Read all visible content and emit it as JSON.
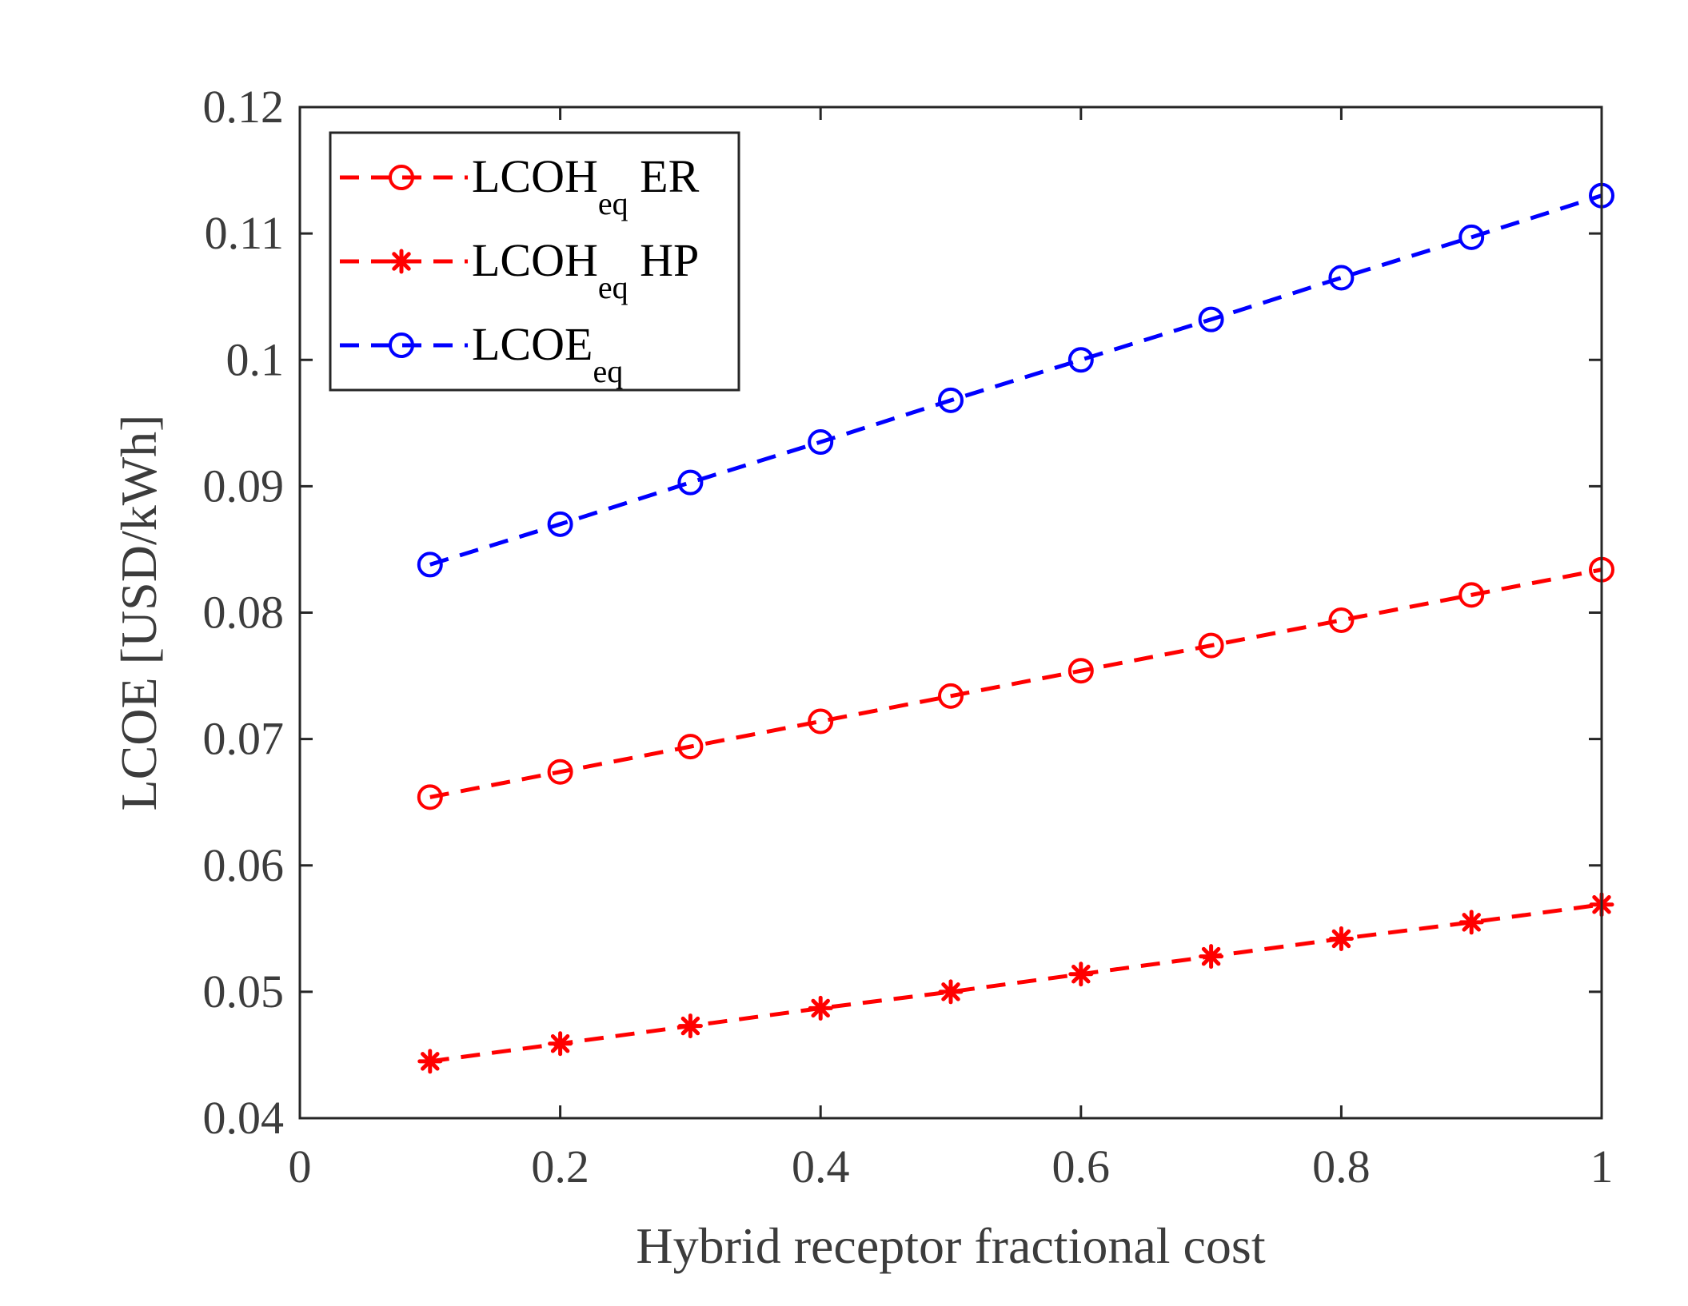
{
  "chart_data": {
    "type": "line",
    "title": "",
    "xlabel": "Hybrid receptor fractional cost",
    "ylabel": "LCOE [USD/kWh]",
    "xlim": [
      0,
      1
    ],
    "ylim": [
      0.04,
      0.12
    ],
    "grid": false,
    "legend_position": "top-left",
    "x": [
      0.1,
      0.2,
      0.3,
      0.4,
      0.5,
      0.6,
      0.7,
      0.8,
      0.9,
      1.0
    ],
    "xticks": [
      "0",
      "0.2",
      "0.4",
      "0.6",
      "0.8",
      "1"
    ],
    "yticks": [
      "0.04",
      "0.05",
      "0.06",
      "0.07",
      "0.08",
      "0.09",
      "0.1",
      "0.11",
      "0.12"
    ],
    "series": [
      {
        "name": "LCOH",
        "name_sub": "eq",
        "name_suffix": " ER",
        "color": "#ff0000",
        "marker": "circle",
        "values": [
          0.0654,
          0.0674,
          0.0694,
          0.0714,
          0.0734,
          0.0754,
          0.0774,
          0.0794,
          0.0814,
          0.0834
        ]
      },
      {
        "name": "LCOH",
        "name_sub": "eq",
        "name_suffix": " HP",
        "color": "#ff0000",
        "marker": "asterisk",
        "values": [
          0.0445,
          0.0459,
          0.0473,
          0.0487,
          0.05,
          0.0514,
          0.0528,
          0.0542,
          0.0555,
          0.0569
        ]
      },
      {
        "name": "LCOE",
        "name_sub": "eq",
        "name_suffix": "",
        "color": "#0000ff",
        "marker": "circle",
        "values": [
          0.0838,
          0.087,
          0.0903,
          0.0935,
          0.0968,
          0.1,
          0.1032,
          0.1065,
          0.1097,
          0.113
        ]
      }
    ]
  }
}
